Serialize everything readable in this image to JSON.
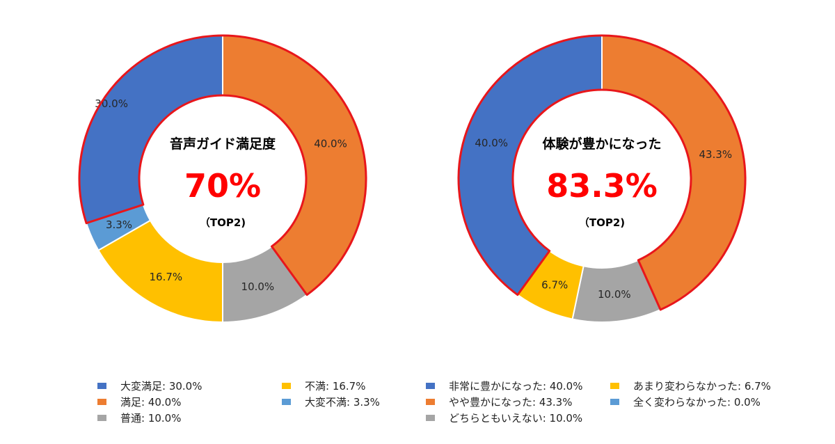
{
  "chart_data": [
    {
      "type": "pie",
      "subtype": "donut",
      "title": "音声ガイド満足度",
      "center_value": "70%",
      "center_note": "（TOP2)",
      "highlighted_slices": [
        "大変満足",
        "満足"
      ],
      "slices": [
        {
          "label": "大変満足",
          "value": 30.0,
          "display": "30.0%",
          "color": "#4472c4"
        },
        {
          "label": "満足",
          "value": 40.0,
          "display": "40.0%",
          "color": "#ed7d31"
        },
        {
          "label": "普通",
          "value": 10.0,
          "display": "10.0%",
          "color": "#a5a5a5"
        },
        {
          "label": "不満",
          "value": 16.7,
          "display": "16.7%",
          "color": "#ffc000"
        },
        {
          "label": "大変不満",
          "value": 3.3,
          "display": "3.3%",
          "color": "#5b9bd5"
        }
      ],
      "legend": [
        {
          "text": "大変満足: 30.0%",
          "color": "#4472c4"
        },
        {
          "text": "不満: 16.7%",
          "color": "#ffc000"
        },
        {
          "text": "満足: 40.0%",
          "color": "#ed7d31"
        },
        {
          "text": "大変不満: 3.3%",
          "color": "#5b9bd5"
        },
        {
          "text": "普通: 10.0%",
          "color": "#a5a5a5"
        }
      ],
      "legend_position": "bottom"
    },
    {
      "type": "pie",
      "subtype": "donut",
      "title": "体験が豊かになった",
      "center_value": "83.3%",
      "center_note": "（TOP2)",
      "highlighted_slices": [
        "非常に豊かになった",
        "やや豊かになった"
      ],
      "slices": [
        {
          "label": "非常に豊かになった",
          "value": 40.0,
          "display": "40.0%",
          "color": "#4472c4"
        },
        {
          "label": "やや豊かになった",
          "value": 43.3,
          "display": "43.3%",
          "color": "#ed7d31"
        },
        {
          "label": "どちらともいえない",
          "value": 10.0,
          "display": "10.0%",
          "color": "#a5a5a5"
        },
        {
          "label": "あまり変わらなかった",
          "value": 6.7,
          "display": "6.7%",
          "color": "#ffc000"
        },
        {
          "label": "全く変わらなかった",
          "value": 0.0,
          "display": "0.0%",
          "color": "#5b9bd5"
        }
      ],
      "legend": [
        {
          "text": "非常に豊かになった: 40.0%",
          "color": "#4472c4"
        },
        {
          "text": "あまり変わらなかった: 6.7%",
          "color": "#ffc000"
        },
        {
          "text": "やや豊かになった: 43.3%",
          "color": "#ed7d31"
        },
        {
          "text": "全く変わらなかった: 0.0%",
          "color": "#5b9bd5"
        },
        {
          "text": "どちらともいえない: 10.0%",
          "color": "#a5a5a5"
        }
      ],
      "legend_position": "bottom"
    }
  ],
  "theme": {
    "highlight_outline": "#e8161b",
    "center_value_color": "#ff0000"
  }
}
